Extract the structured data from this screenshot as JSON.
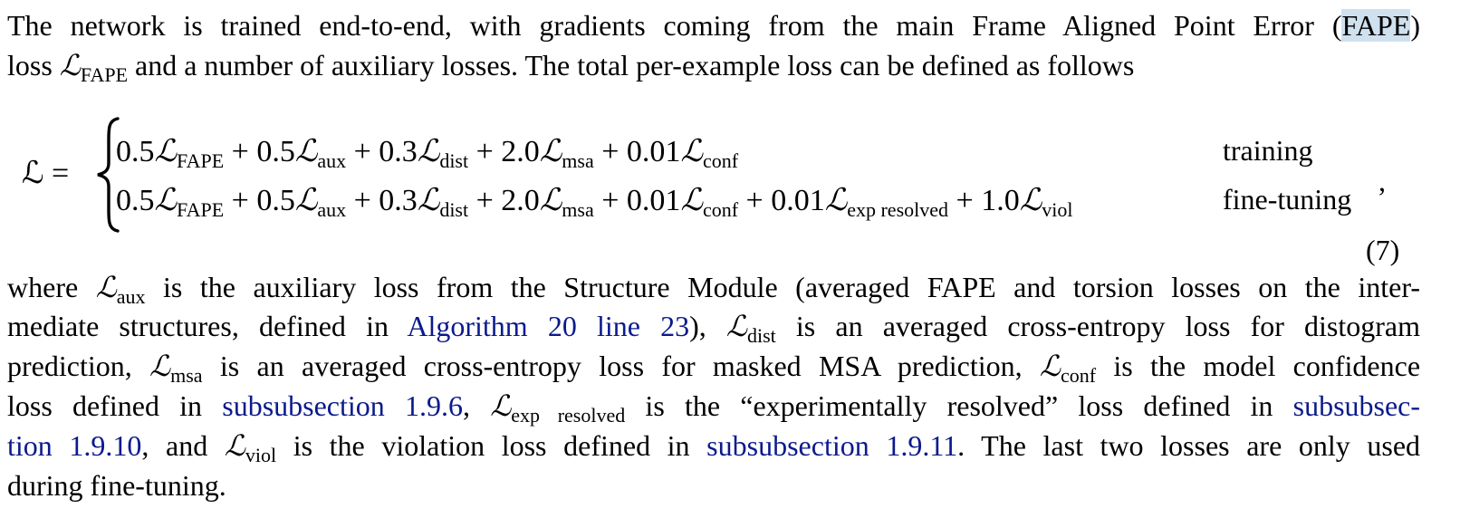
{
  "paragraph1": {
    "l1_pre": "The network is trained end-to-end, with gradients coming from the main Frame Aligned Point Error (",
    "l1_hl": "FAPE",
    "l1_post": ")",
    "l2_a": "loss ",
    "l2_b": " and a number of auxiliary losses. The total per-example loss can be defined as follows"
  },
  "sym": {
    "L": "ℒ",
    "fape": "FAPE",
    "aux": "aux",
    "dist": "dist",
    "msa": "msa",
    "conf": "conf",
    "exp": "exp resolved",
    "viol": "viol"
  },
  "equation": {
    "lhs": "ℒ =",
    "c_fape": "0.5",
    "t_aux": " + 0.5",
    "t_dist": " + 0.3",
    "t_msa": " + 2.0",
    "t_conf": " + 0.01",
    "t_exp": " + 0.01",
    "t_viol": " + 1.0",
    "cond_training": "training",
    "cond_finetuning": "fine-tuning",
    "comma": ",",
    "number": "(7)"
  },
  "paragraph2": {
    "l1_a": "where ",
    "l1_b": " is the auxiliary loss from the Structure Module (averaged FAPE and torsion losses on the inter-",
    "l2_a": "mediate structures, defined in ",
    "l2_link": "Algorithm 20 line 23",
    "l2_b": "), ",
    "l2_c": " is an averaged cross-entropy loss for distogram",
    "l3_a": "prediction, ",
    "l3_b": " is an averaged cross-entropy loss for masked MSA prediction, ",
    "l3_c": " is the model confidence",
    "l4_a": "loss defined in ",
    "l4_link1": "subsubsection 1.9.6",
    "l4_b": ", ",
    "l4_c": " is the “experimentally resolved” loss defined in ",
    "l4_link2": "subsubsec-",
    "l5_link": "tion 1.9.10",
    "l5_a": ", and ",
    "l5_b": " is the violation loss defined in ",
    "l5_link2": "subsubsection 1.9.11",
    "l5_c": ". The last two losses are only used",
    "l6": "during fine-tuning."
  }
}
